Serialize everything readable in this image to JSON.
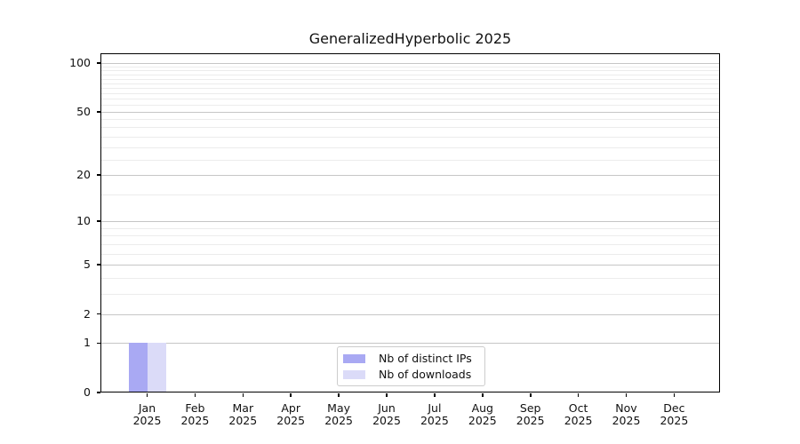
{
  "chart_data": {
    "type": "bar",
    "title": "GeneralizedHyperbolic 2025",
    "year_label": "2025",
    "categories": [
      "Jan",
      "Feb",
      "Mar",
      "Apr",
      "May",
      "Jun",
      "Jul",
      "Aug",
      "Sep",
      "Oct",
      "Nov",
      "Dec"
    ],
    "series": [
      {
        "name": "Nb of distinct IPs",
        "color": "#a9a9f3",
        "values": [
          1,
          0,
          0,
          0,
          0,
          0,
          0,
          0,
          0,
          0,
          0,
          0
        ]
      },
      {
        "name": "Nb of downloads",
        "color": "#dbdbf8",
        "values": [
          1,
          0,
          0,
          0,
          0,
          0,
          0,
          0,
          0,
          0,
          0,
          0
        ]
      }
    ],
    "xlabel": "",
    "ylabel": "",
    "yscale": "log1p",
    "ylim": [
      0,
      113
    ],
    "y_major_ticks": [
      0,
      1,
      2,
      5,
      10,
      20,
      50,
      100
    ],
    "y_minor_ticks": [
      3,
      4,
      6,
      7,
      8,
      9,
      15,
      25,
      30,
      35,
      40,
      45,
      55,
      60,
      65,
      70,
      75,
      80,
      85,
      90,
      95
    ],
    "grid": "horizontal",
    "legend_position": "lower center inside"
  },
  "colors": {
    "background": "#ffffff",
    "axis": "#000000",
    "text": "#111111",
    "grid_major": "#c6c6c6",
    "grid_minor": "#ececec",
    "legend_border": "#cccccc"
  }
}
